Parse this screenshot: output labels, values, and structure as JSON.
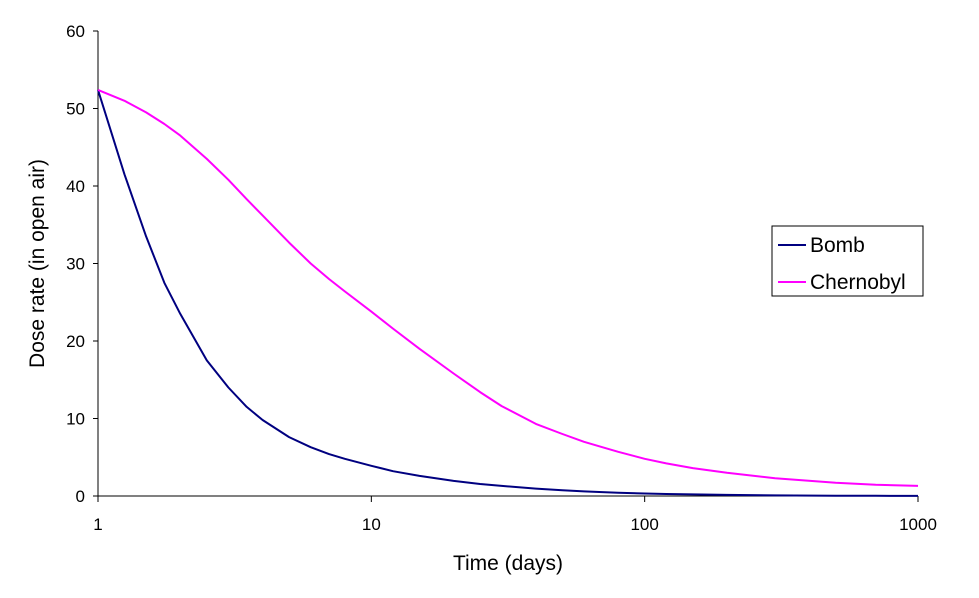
{
  "chart_data": {
    "type": "line",
    "title": "",
    "xlabel": "Time (days)",
    "ylabel": "Dose rate (in open air)",
    "xscale": "log",
    "xlim": [
      1,
      1000
    ],
    "ylim": [
      0,
      60
    ],
    "x_ticks": [
      1,
      10,
      100,
      1000
    ],
    "x_tick_labels": [
      "1",
      "10",
      "100",
      "1000"
    ],
    "y_ticks": [
      0,
      10,
      20,
      30,
      40,
      50,
      60
    ],
    "y_tick_labels": [
      "0",
      "10",
      "20",
      "30",
      "40",
      "50",
      "60"
    ],
    "grid": false,
    "legend_position": "right",
    "series": [
      {
        "name": "Bomb",
        "color": "#000080",
        "x": [
          1,
          1.25,
          1.5,
          1.75,
          2,
          2.5,
          3,
          3.5,
          4,
          5,
          6,
          7,
          8,
          10,
          12,
          15,
          20,
          25,
          30,
          40,
          50,
          60,
          70,
          80,
          100,
          120,
          150,
          200,
          300,
          500,
          700,
          1000
        ],
        "y": [
          52.4,
          41.5,
          33.5,
          27.5,
          23.5,
          17.5,
          14.0,
          11.5,
          9.8,
          7.6,
          6.3,
          5.4,
          4.8,
          3.9,
          3.2,
          2.6,
          1.95,
          1.55,
          1.3,
          0.95,
          0.75,
          0.6,
          0.5,
          0.42,
          0.32,
          0.26,
          0.2,
          0.14,
          0.08,
          0.04,
          0.02,
          0.01
        ]
      },
      {
        "name": "Chernobyl",
        "color": "#ff00ff",
        "x": [
          1,
          1.25,
          1.5,
          1.75,
          2,
          2.5,
          3,
          3.5,
          4,
          5,
          6,
          7,
          8,
          10,
          12,
          15,
          20,
          25,
          30,
          40,
          50,
          60,
          70,
          80,
          100,
          120,
          150,
          200,
          300,
          500,
          700,
          1000
        ],
        "y": [
          52.4,
          51.0,
          49.5,
          48.0,
          46.5,
          43.5,
          40.8,
          38.3,
          36.2,
          32.7,
          30.0,
          28.0,
          26.4,
          23.8,
          21.6,
          19.0,
          15.8,
          13.4,
          11.6,
          9.3,
          8.0,
          7.0,
          6.3,
          5.7,
          4.8,
          4.2,
          3.6,
          3.0,
          2.3,
          1.7,
          1.45,
          1.3
        ]
      }
    ]
  }
}
